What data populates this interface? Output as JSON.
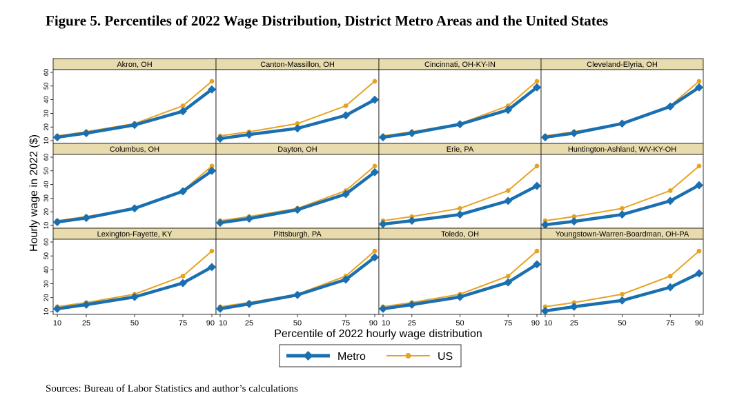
{
  "figure": {
    "title": "Figure 5. Percentiles of 2022 Wage Distribution, District Metro Areas and the United States",
    "source": "Sources: Bureau of Labor Statistics and author’s calculations"
  },
  "colors": {
    "metro": "#1a6fb0",
    "us": "#e6a321",
    "header_bg": "#e8dcae",
    "frame": "#000000"
  },
  "chart_data": {
    "type": "line",
    "layout": "small-multiples-3x4",
    "x": [
      10,
      25,
      50,
      75,
      90
    ],
    "x_ticks": [
      "10",
      "25",
      "50",
      "75",
      "90"
    ],
    "y_ticks": [
      "10",
      "20",
      "30",
      "40",
      "50",
      "60"
    ],
    "ylim": [
      8,
      62
    ],
    "xlabel": "Percentile of 2022 hourly wage distribution",
    "ylabel": "Hourly wage in 2022 ($)",
    "legend": {
      "placement": "bottom-center",
      "items": [
        "Metro",
        "US"
      ]
    },
    "us_values": [
      13.5,
      16.5,
      22.5,
      35.5,
      53.5
    ],
    "panels": [
      {
        "title": "Akron, OH",
        "metro": [
          12.5,
          15.5,
          21.5,
          31.5,
          47.5
        ]
      },
      {
        "title": "Canton-Massillon, OH",
        "metro": [
          11.5,
          14.5,
          19,
          28.5,
          40
        ]
      },
      {
        "title": "Cincinnati, OH-KY-IN",
        "metro": [
          12.5,
          15.5,
          22,
          32.5,
          49
        ]
      },
      {
        "title": "Cleveland-Elyria, OH",
        "metro": [
          12.5,
          15.5,
          22.5,
          35,
          49
        ]
      },
      {
        "title": "Columbus, OH",
        "metro": [
          12.5,
          15.5,
          22.5,
          35,
          50
        ]
      },
      {
        "title": "Dayton, OH",
        "metro": [
          12,
          15,
          21.5,
          33,
          49
        ]
      },
      {
        "title": "Erie, PA",
        "metro": [
          11,
          13.5,
          18,
          28,
          39
        ]
      },
      {
        "title": "Huntington-Ashland, WV-KY-OH",
        "metro": [
          10.5,
          13,
          18,
          28,
          39.5
        ]
      },
      {
        "title": "Lexington-Fayette, KY",
        "metro": [
          12,
          15,
          20.5,
          30.5,
          42
        ]
      },
      {
        "title": "Pittsburgh, PA",
        "metro": [
          12,
          15.5,
          22,
          33,
          49
        ]
      },
      {
        "title": "Toledo, OH",
        "metro": [
          12,
          15,
          20.5,
          31,
          44
        ]
      },
      {
        "title": "Youngstown-Warren-Boardman, OH-PA",
        "metro": [
          10.5,
          13.5,
          18,
          27.5,
          37.5
        ]
      }
    ]
  }
}
